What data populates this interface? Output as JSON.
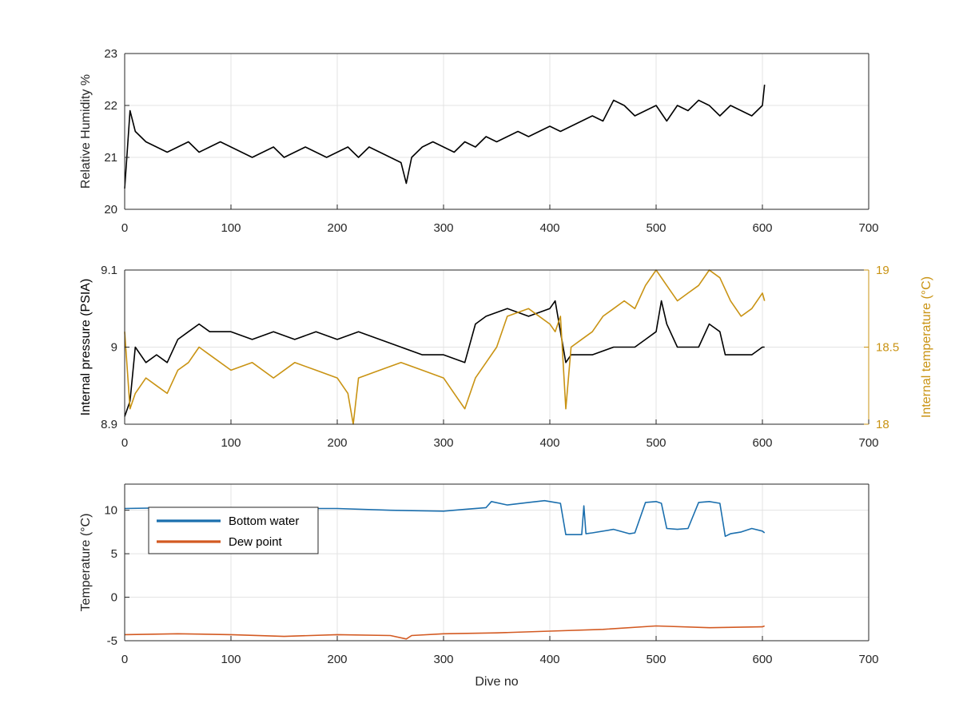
{
  "figure": {
    "chart_data": [
      {
        "type": "line",
        "title": "",
        "xlabel": "",
        "ylabel": "Relative Humidity %",
        "xlim": [
          0,
          700
        ],
        "ylim": [
          20,
          23
        ],
        "xticks": [
          0,
          100,
          200,
          300,
          400,
          500,
          600,
          700
        ],
        "yticks": [
          20,
          21,
          22,
          23
        ],
        "grid": true,
        "series": [
          {
            "color": "#000000",
            "x": [
              0,
              2,
              5,
              10,
              20,
              30,
              40,
              50,
              60,
              70,
              80,
              90,
              100,
              110,
              120,
              130,
              140,
              150,
              160,
              170,
              180,
              190,
              200,
              210,
              220,
              230,
              240,
              250,
              260,
              265,
              270,
              280,
              290,
              300,
              310,
              320,
              330,
              340,
              350,
              360,
              370,
              380,
              390,
              400,
              410,
              420,
              430,
              440,
              450,
              460,
              470,
              480,
              490,
              500,
              510,
              520,
              530,
              540,
              550,
              560,
              570,
              580,
              590,
              600,
              602
            ],
            "y": [
              20.4,
              21.0,
              21.9,
              21.5,
              21.3,
              21.2,
              21.1,
              21.2,
              21.3,
              21.1,
              21.2,
              21.3,
              21.2,
              21.1,
              21.0,
              21.1,
              21.2,
              21.0,
              21.1,
              21.2,
              21.1,
              21.0,
              21.1,
              21.2,
              21.0,
              21.2,
              21.1,
              21.0,
              20.9,
              20.5,
              21.0,
              21.2,
              21.3,
              21.2,
              21.1,
              21.3,
              21.2,
              21.4,
              21.3,
              21.4,
              21.5,
              21.4,
              21.5,
              21.6,
              21.5,
              21.6,
              21.7,
              21.8,
              21.7,
              22.1,
              22.0,
              21.8,
              21.9,
              22.0,
              21.7,
              22.0,
              21.9,
              22.1,
              22.0,
              21.8,
              22.0,
              21.9,
              21.8,
              22.0,
              22.4
            ]
          }
        ]
      },
      {
        "type": "line",
        "title": "",
        "xlabel": "",
        "ylabel": "Internal pressure (PSIA)",
        "y2label": "Internal temperature (°C)",
        "xlim": [
          0,
          700
        ],
        "ylim": [
          8.9,
          9.1
        ],
        "y2lim": [
          18,
          19
        ],
        "xticks": [
          0,
          100,
          200,
          300,
          400,
          500,
          600,
          700
        ],
        "yticks": [
          8.9,
          9.0,
          9.1
        ],
        "yticklabels": [
          "8.9",
          "9",
          "9.1"
        ],
        "y2ticks": [
          18,
          18.5,
          19
        ],
        "y2ticklabels": [
          "18",
          "18.5",
          "19"
        ],
        "grid": true,
        "series": [
          {
            "axis": "left",
            "color": "#000000",
            "x": [
              0,
              5,
              10,
              20,
              30,
              40,
              50,
              60,
              70,
              80,
              100,
              120,
              140,
              160,
              180,
              200,
              220,
              240,
              260,
              280,
              300,
              320,
              330,
              340,
              360,
              380,
              400,
              405,
              410,
              415,
              420,
              440,
              460,
              480,
              490,
              500,
              505,
              510,
              520,
              530,
              540,
              550,
              560,
              565,
              570,
              580,
              590,
              600,
              602
            ],
            "y": [
              8.91,
              8.93,
              9.0,
              8.98,
              8.99,
              8.98,
              9.01,
              9.02,
              9.03,
              9.02,
              9.02,
              9.01,
              9.02,
              9.01,
              9.02,
              9.01,
              9.02,
              9.01,
              9.0,
              8.99,
              8.99,
              8.98,
              9.03,
              9.04,
              9.05,
              9.04,
              9.05,
              9.06,
              9.02,
              8.98,
              8.99,
              8.99,
              9.0,
              9.0,
              9.01,
              9.02,
              9.06,
              9.03,
              9.0,
              9.0,
              9.0,
              9.03,
              9.02,
              8.99,
              8.99,
              8.99,
              8.99,
              9.0,
              9.0
            ]
          },
          {
            "axis": "right",
            "color": "#C99313",
            "x": [
              0,
              5,
              10,
              20,
              30,
              40,
              50,
              60,
              70,
              80,
              100,
              120,
              140,
              160,
              180,
              200,
              210,
              215,
              220,
              240,
              260,
              280,
              300,
              310,
              320,
              330,
              340,
              350,
              360,
              380,
              400,
              405,
              410,
              415,
              420,
              430,
              440,
              450,
              460,
              470,
              480,
              490,
              500,
              510,
              520,
              530,
              540,
              550,
              560,
              570,
              580,
              590,
              600,
              602
            ],
            "y": [
              18.6,
              18.1,
              18.2,
              18.3,
              18.25,
              18.2,
              18.35,
              18.4,
              18.5,
              18.45,
              18.35,
              18.4,
              18.3,
              18.4,
              18.35,
              18.3,
              18.2,
              18.0,
              18.3,
              18.35,
              18.4,
              18.35,
              18.3,
              18.2,
              18.1,
              18.3,
              18.4,
              18.5,
              18.7,
              18.75,
              18.65,
              18.6,
              18.7,
              18.1,
              18.5,
              18.55,
              18.6,
              18.7,
              18.75,
              18.8,
              18.75,
              18.9,
              19.0,
              18.9,
              18.8,
              18.85,
              18.9,
              19.0,
              18.95,
              18.8,
              18.7,
              18.75,
              18.85,
              18.8
            ]
          }
        ]
      },
      {
        "type": "line",
        "title": "",
        "xlabel": "Dive no",
        "ylabel": "Temperature (°C)",
        "xlim": [
          0,
          700
        ],
        "ylim": [
          -5,
          13
        ],
        "xticks": [
          0,
          100,
          200,
          300,
          400,
          500,
          600,
          700
        ],
        "yticks": [
          -5,
          0,
          5,
          10
        ],
        "grid": true,
        "legend": "top-left",
        "series": [
          {
            "name": "Bottom water",
            "color": "#1B6FAE",
            "x": [
              0,
              50,
              100,
              150,
              200,
              250,
              300,
              320,
              340,
              345,
              360,
              380,
              395,
              400,
              405,
              410,
              415,
              420,
              430,
              432,
              434,
              440,
              460,
              475,
              480,
              490,
              500,
              505,
              510,
              520,
              530,
              540,
              550,
              560,
              565,
              570,
              580,
              590,
              600,
              602
            ],
            "y": [
              10.2,
              10.3,
              10.3,
              10.2,
              10.2,
              10.0,
              9.9,
              10.1,
              10.3,
              11.0,
              10.6,
              10.9,
              11.1,
              11.0,
              10.9,
              10.8,
              7.2,
              7.2,
              7.2,
              10.5,
              7.3,
              7.4,
              7.8,
              7.3,
              7.4,
              10.9,
              11.0,
              10.8,
              7.9,
              7.8,
              7.9,
              10.9,
              11.0,
              10.8,
              7.0,
              7.3,
              7.5,
              7.9,
              7.6,
              7.4
            ]
          },
          {
            "name": "Dew point",
            "color": "#D35A22",
            "x": [
              0,
              50,
              100,
              150,
              200,
              250,
              265,
              270,
              300,
              350,
              400,
              450,
              500,
              550,
              600,
              602
            ],
            "y": [
              -4.3,
              -4.2,
              -4.3,
              -4.5,
              -4.3,
              -4.4,
              -4.8,
              -4.4,
              -4.2,
              -4.1,
              -3.9,
              -3.7,
              -3.3,
              -3.5,
              -3.4,
              -3.3
            ]
          }
        ]
      }
    ]
  }
}
